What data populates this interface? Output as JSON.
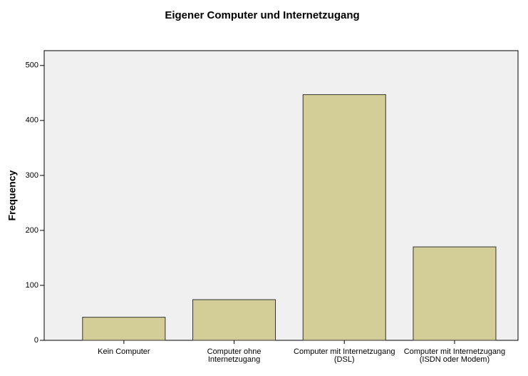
{
  "chart_data": {
    "type": "bar",
    "title": "Eigener Computer und Internetzugang",
    "y_label": "Frequency",
    "categories": [
      "Kein Computer",
      "Computer ohne Internetzugang",
      "Computer mit Internetzugang (DSL)",
      "Computer mit Internetzugang (ISDN oder Modem)"
    ],
    "values": [
      42,
      74,
      447,
      170
    ],
    "color": "#d3ce98",
    "ylim": [
      0,
      527
    ],
    "yticks": [
      0,
      100,
      200,
      300,
      400,
      500
    ],
    "grid": false
  }
}
